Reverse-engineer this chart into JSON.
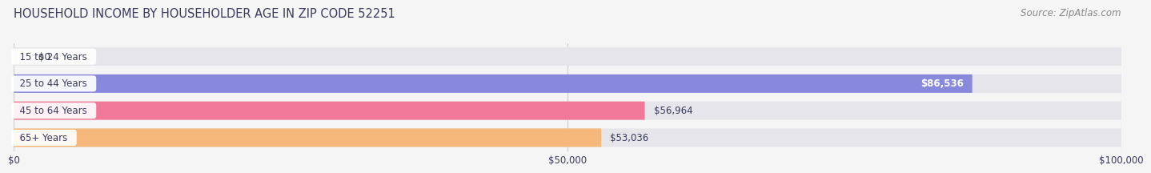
{
  "title": "HOUSEHOLD INCOME BY HOUSEHOLDER AGE IN ZIP CODE 52251",
  "source": "Source: ZipAtlas.com",
  "categories": [
    "15 to 24 Years",
    "25 to 44 Years",
    "45 to 64 Years",
    "65+ Years"
  ],
  "values": [
    0,
    86536,
    56964,
    53036
  ],
  "bar_colors": [
    "#5ecfc8",
    "#8888dd",
    "#f07898",
    "#f5b87a"
  ],
  "background_color": "#f5f5f5",
  "bar_bg_color": "#e5e5ea",
  "xlim": [
    0,
    100000
  ],
  "xticks": [
    0,
    50000,
    100000
  ],
  "xtick_labels": [
    "$0",
    "$50,000",
    "$100,000"
  ],
  "title_color": "#3a3a5c",
  "source_color": "#888888",
  "value_labels": [
    "$0",
    "$86,536",
    "$56,964",
    "$53,036"
  ],
  "value_label_colors": [
    "#3a3a5c",
    "#ffffff",
    "#3a3a5c",
    "#3a3a5c"
  ],
  "cat_label_color": "#3a3a5c",
  "grid_color": "#cccccc",
  "bar_height": 0.68,
  "bar_gap": 0.32
}
